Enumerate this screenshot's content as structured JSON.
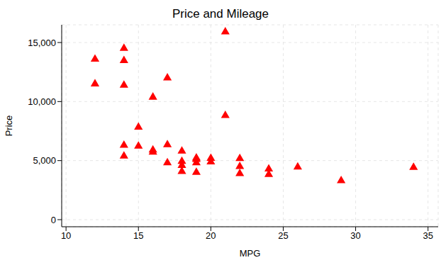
{
  "chart_data": {
    "type": "scatter",
    "title": "Price and Mileage",
    "x_label": "MPG",
    "y_label": "Price",
    "color": "#ff0000",
    "marker": "triangle",
    "grid": true,
    "xlim": [
      9.7,
      35.7
    ],
    "xticks": [
      10,
      15,
      20,
      25,
      30,
      35
    ],
    "ylim": [
      -600,
      16500
    ],
    "yticks": [
      0,
      {
        "value": 5000,
        "label": "5,000"
      },
      {
        "value": 10000,
        "label": "10,000"
      },
      {
        "value": 15000,
        "label": "15,000"
      }
    ],
    "x": [
      12,
      12,
      14,
      14,
      14,
      14,
      14,
      15,
      15,
      16,
      16,
      16,
      17,
      17,
      17,
      18,
      18,
      18,
      18,
      19,
      19,
      19,
      19,
      20,
      20,
      21,
      21,
      22,
      22,
      22,
      24,
      24,
      26,
      29,
      34
    ],
    "values": [
      13594,
      11497,
      14500,
      13466,
      11385,
      6295,
      5379,
      7827,
      6229,
      10372,
      5899,
      5719,
      11995,
      6342,
      4816,
      5799,
      4934,
      4589,
      4082,
      5222,
      5104,
      4816,
      4010,
      5189,
      4890,
      15906,
      8814,
      5172,
      4504,
      3895,
      4296,
      3829,
      4453,
      3299,
      4425
    ]
  }
}
